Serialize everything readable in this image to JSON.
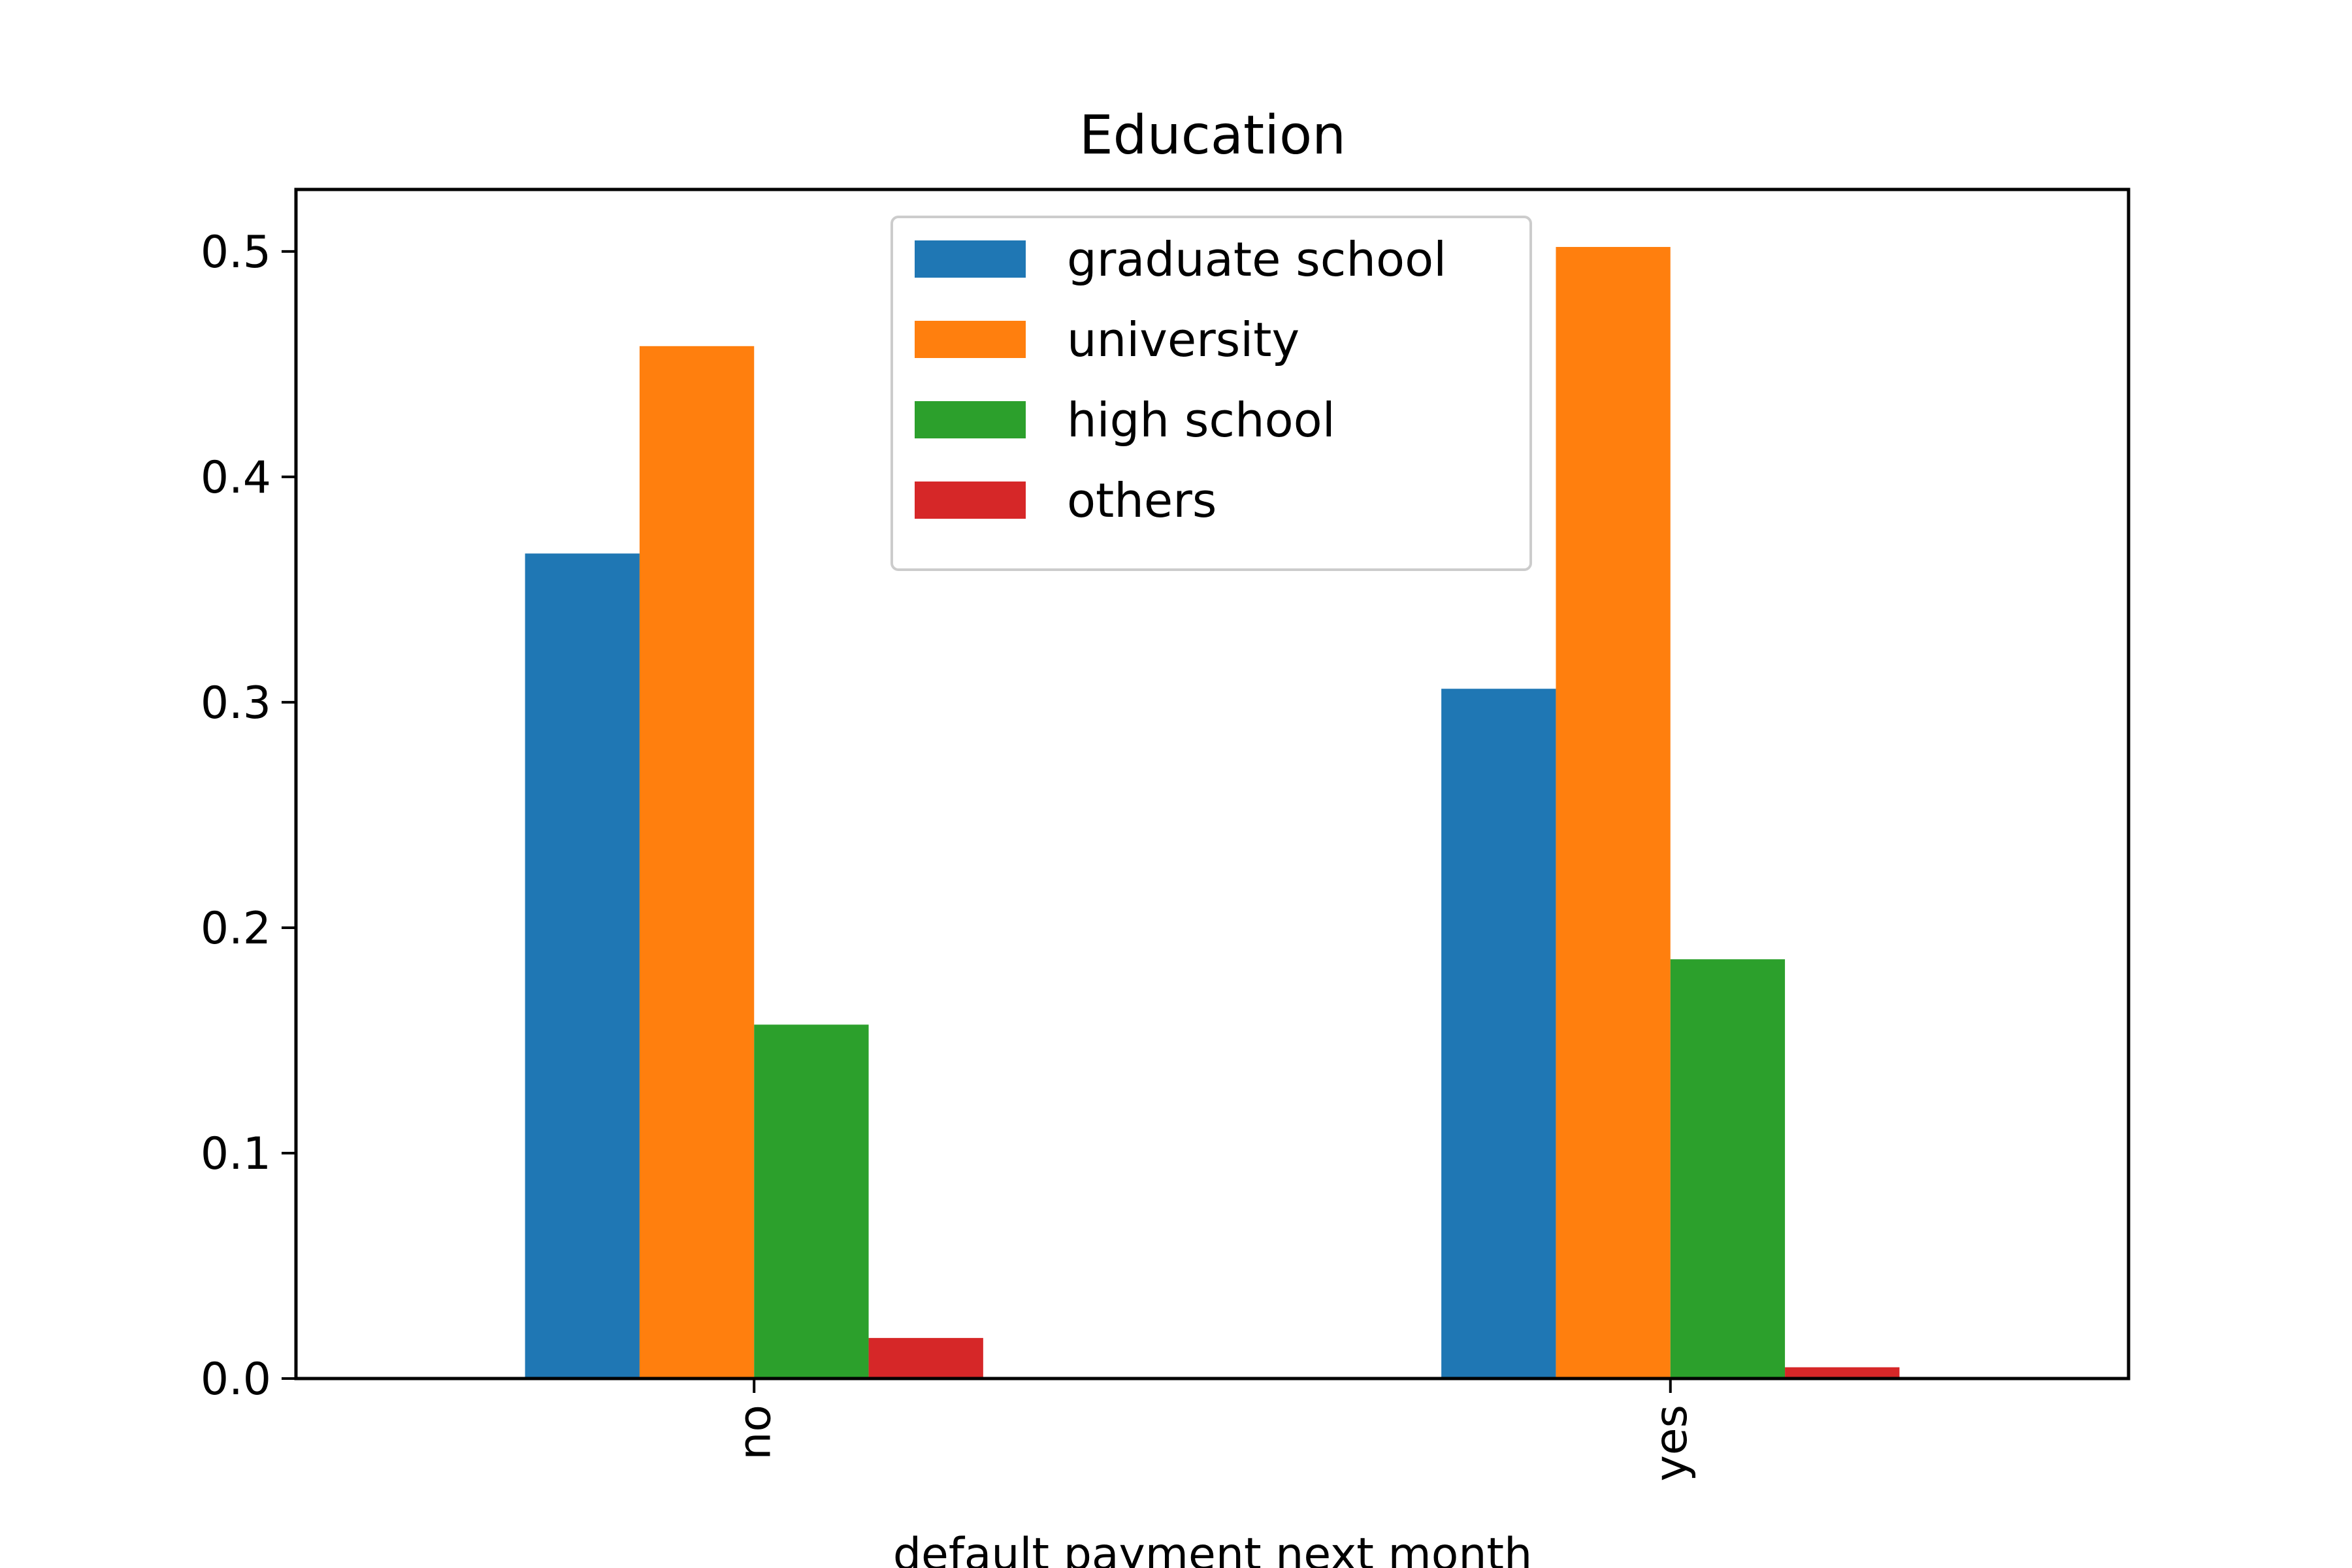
{
  "chart_data": {
    "type": "bar",
    "title": "Education",
    "xlabel": "default payment next month",
    "ylabel": "",
    "categories": [
      "no",
      "yes"
    ],
    "ylim": [
      0,
      0.5275
    ],
    "yticks": [
      "0.0",
      "0.1",
      "0.2",
      "0.3",
      "0.4",
      "0.5"
    ],
    "ytick_values": [
      0,
      0.1,
      0.2,
      0.3,
      0.4,
      0.5
    ],
    "grid": false,
    "legend_position": "top-center",
    "series": [
      {
        "name": "graduate school",
        "color": "#1f77b4",
        "values": [
          0.366,
          0.306
        ]
      },
      {
        "name": "university",
        "color": "#ff7f0e",
        "values": [
          0.458,
          0.502
        ]
      },
      {
        "name": "high school",
        "color": "#2ca02c",
        "values": [
          0.157,
          0.186
        ]
      },
      {
        "name": "others",
        "color": "#d62728",
        "values": [
          0.018,
          0.005
        ]
      }
    ]
  }
}
